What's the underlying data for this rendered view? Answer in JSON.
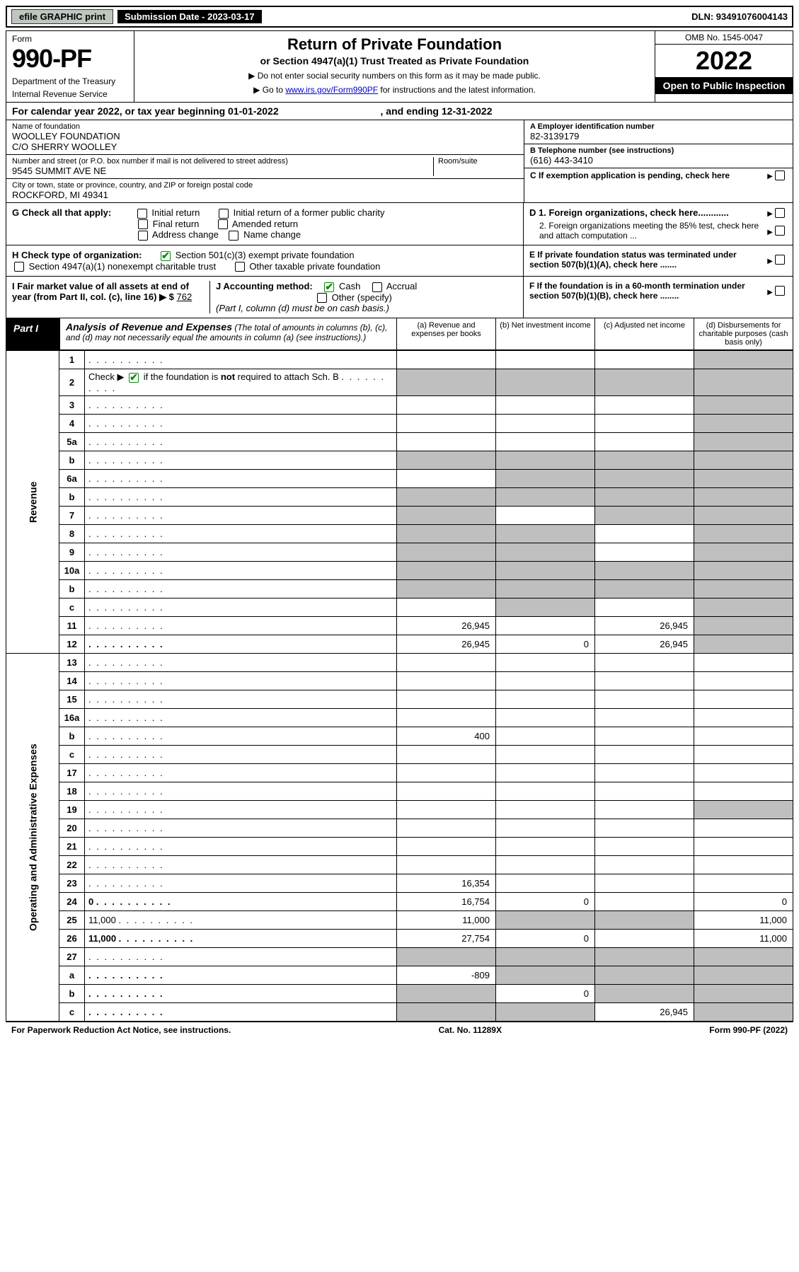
{
  "topbar": {
    "efile": "efile GRAPHIC print",
    "submission": "Submission Date - 2023-03-17",
    "dln": "DLN: 93491076004143"
  },
  "header": {
    "form": "Form",
    "formnum": "990-PF",
    "dept": "Department of the Treasury",
    "irs": "Internal Revenue Service",
    "title": "Return of Private Foundation",
    "subtitle": "or Section 4947(a)(1) Trust Treated as Private Foundation",
    "note1": "▶ Do not enter social security numbers on this form as it may be made public.",
    "note2_pre": "▶ Go to ",
    "note2_link": "www.irs.gov/Form990PF",
    "note2_post": " for instructions and the latest information.",
    "omb": "OMB No. 1545-0047",
    "year": "2022",
    "open": "Open to Public Inspection"
  },
  "calyear": {
    "text_pre": "For calendar year 2022, or tax year beginning ",
    "begin": "01-01-2022",
    "text_mid": " , and ending ",
    "end": "12-31-2022"
  },
  "info_left": {
    "name_lbl": "Name of foundation",
    "name1": "WOOLLEY FOUNDATION",
    "name2": "C/O SHERRY WOOLLEY",
    "addr_lbl": "Number and street (or P.O. box number if mail is not delivered to street address)",
    "room_lbl": "Room/suite",
    "addr": "9545 SUMMIT AVE NE",
    "city_lbl": "City or town, state or province, country, and ZIP or foreign postal code",
    "city": "ROCKFORD, MI  49341"
  },
  "info_right": {
    "a_lbl": "A Employer identification number",
    "a_val": "82-3139179",
    "b_lbl": "B Telephone number (see instructions)",
    "b_val": "(616) 443-3410",
    "c_lbl": "C If exemption application is pending, check here",
    "d1_lbl": "D 1. Foreign organizations, check here............",
    "d2_lbl": "2. Foreign organizations meeting the 85% test, check here and attach computation ...",
    "e_lbl": "E If private foundation status was terminated under section 507(b)(1)(A), check here .......",
    "f_lbl": "F If the foundation is in a 60-month termination under section 507(b)(1)(B), check here ........"
  },
  "g": {
    "lbl": "G Check all that apply:",
    "opts": [
      "Initial return",
      "Initial return of a former public charity",
      "Final return",
      "Amended return",
      "Address change",
      "Name change"
    ]
  },
  "h": {
    "lbl": "H Check type of organization:",
    "opt1": "Section 501(c)(3) exempt private foundation",
    "opt2": "Section 4947(a)(1) nonexempt charitable trust",
    "opt3": "Other taxable private foundation"
  },
  "i": {
    "lbl": "I Fair market value of all assets at end of year (from Part II, col. (c), line 16) ▶ $",
    "val": "762"
  },
  "j": {
    "lbl": "J Accounting method:",
    "cash": "Cash",
    "accrual": "Accrual",
    "other": "Other (specify)",
    "note": "(Part I, column (d) must be on cash basis.)"
  },
  "part1": {
    "label": "Part I",
    "title": "Analysis of Revenue and Expenses",
    "title_sub": " (The total of amounts in columns (b), (c), and (d) may not necessarily equal the amounts in column (a) (see instructions).)",
    "col_a": "(a) Revenue and expenses per books",
    "col_b": "(b) Net investment income",
    "col_c": "(c) Adjusted net income",
    "col_d": "(d) Disbursements for charitable purposes (cash basis only)"
  },
  "sidelabels": {
    "revenue": "Revenue",
    "expenses": "Operating and Administrative Expenses"
  },
  "rows": [
    {
      "n": "1",
      "d": "",
      "a": "",
      "b": "",
      "c": "",
      "shade": [
        "d"
      ]
    },
    {
      "n": "2",
      "d": "",
      "a": "",
      "b": "",
      "c": "",
      "shade": [
        "a",
        "b",
        "c",
        "d"
      ],
      "checkbox": true
    },
    {
      "n": "3",
      "d": "",
      "a": "",
      "b": "",
      "c": "",
      "shade": [
        "d"
      ]
    },
    {
      "n": "4",
      "d": "",
      "a": "",
      "b": "",
      "c": "",
      "shade": [
        "d"
      ]
    },
    {
      "n": "5a",
      "d": "",
      "a": "",
      "b": "",
      "c": "",
      "shade": [
        "d"
      ]
    },
    {
      "n": "b",
      "d": "",
      "a": "",
      "b": "",
      "c": "",
      "shade": [
        "a",
        "b",
        "c",
        "d"
      ]
    },
    {
      "n": "6a",
      "d": "",
      "a": "",
      "b": "",
      "c": "",
      "shade": [
        "b",
        "c",
        "d"
      ]
    },
    {
      "n": "b",
      "d": "",
      "a": "",
      "b": "",
      "c": "",
      "shade": [
        "a",
        "b",
        "c",
        "d"
      ]
    },
    {
      "n": "7",
      "d": "",
      "a": "",
      "b": "",
      "c": "",
      "shade": [
        "a",
        "c",
        "d"
      ]
    },
    {
      "n": "8",
      "d": "",
      "a": "",
      "b": "",
      "c": "",
      "shade": [
        "a",
        "b",
        "d"
      ]
    },
    {
      "n": "9",
      "d": "",
      "a": "",
      "b": "",
      "c": "",
      "shade": [
        "a",
        "b",
        "d"
      ]
    },
    {
      "n": "10a",
      "d": "",
      "a": "",
      "b": "",
      "c": "",
      "shade": [
        "a",
        "b",
        "c",
        "d"
      ]
    },
    {
      "n": "b",
      "d": "",
      "a": "",
      "b": "",
      "c": "",
      "shade": [
        "a",
        "b",
        "c",
        "d"
      ]
    },
    {
      "n": "c",
      "d": "",
      "a": "",
      "b": "",
      "c": "",
      "shade": [
        "b",
        "d"
      ]
    },
    {
      "n": "11",
      "d": "",
      "a": "26,945",
      "b": "",
      "c": "26,945",
      "shade": [
        "d"
      ]
    },
    {
      "n": "12",
      "d": "",
      "a": "26,945",
      "b": "0",
      "c": "26,945",
      "shade": [
        "d"
      ],
      "bold": true
    }
  ],
  "exp_rows": [
    {
      "n": "13",
      "d": "",
      "a": "",
      "b": "",
      "c": ""
    },
    {
      "n": "14",
      "d": "",
      "a": "",
      "b": "",
      "c": ""
    },
    {
      "n": "15",
      "d": "",
      "a": "",
      "b": "",
      "c": ""
    },
    {
      "n": "16a",
      "d": "",
      "a": "",
      "b": "",
      "c": ""
    },
    {
      "n": "b",
      "d": "",
      "a": "400",
      "b": "",
      "c": ""
    },
    {
      "n": "c",
      "d": "",
      "a": "",
      "b": "",
      "c": ""
    },
    {
      "n": "17",
      "d": "",
      "a": "",
      "b": "",
      "c": ""
    },
    {
      "n": "18",
      "d": "",
      "a": "",
      "b": "",
      "c": ""
    },
    {
      "n": "19",
      "d": "",
      "a": "",
      "b": "",
      "c": "",
      "shade": [
        "d"
      ]
    },
    {
      "n": "20",
      "d": "",
      "a": "",
      "b": "",
      "c": ""
    },
    {
      "n": "21",
      "d": "",
      "a": "",
      "b": "",
      "c": ""
    },
    {
      "n": "22",
      "d": "",
      "a": "",
      "b": "",
      "c": ""
    },
    {
      "n": "23",
      "d": "",
      "a": "16,354",
      "b": "",
      "c": ""
    },
    {
      "n": "24",
      "d": "0",
      "a": "16,754",
      "b": "0",
      "c": "",
      "bold": true
    },
    {
      "n": "25",
      "d": "11,000",
      "a": "11,000",
      "b": "",
      "c": "",
      "shade": [
        "b",
        "c"
      ]
    },
    {
      "n": "26",
      "d": "11,000",
      "a": "27,754",
      "b": "0",
      "c": "",
      "bold": true
    },
    {
      "n": "27",
      "d": "",
      "a": "",
      "b": "",
      "c": "",
      "shade": [
        "a",
        "b",
        "c",
        "d"
      ]
    },
    {
      "n": "a",
      "d": "",
      "a": "-809",
      "b": "",
      "c": "",
      "shade": [
        "b",
        "c",
        "d"
      ],
      "bold": true
    },
    {
      "n": "b",
      "d": "",
      "a": "",
      "b": "0",
      "c": "",
      "shade": [
        "a",
        "c",
        "d"
      ],
      "bold": true
    },
    {
      "n": "c",
      "d": "",
      "a": "",
      "b": "",
      "c": "26,945",
      "shade": [
        "a",
        "b",
        "d"
      ],
      "bold": true
    }
  ],
  "footer": {
    "left": "For Paperwork Reduction Act Notice, see instructions.",
    "mid": "Cat. No. 11289X",
    "right": "Form 990-PF (2022)"
  }
}
